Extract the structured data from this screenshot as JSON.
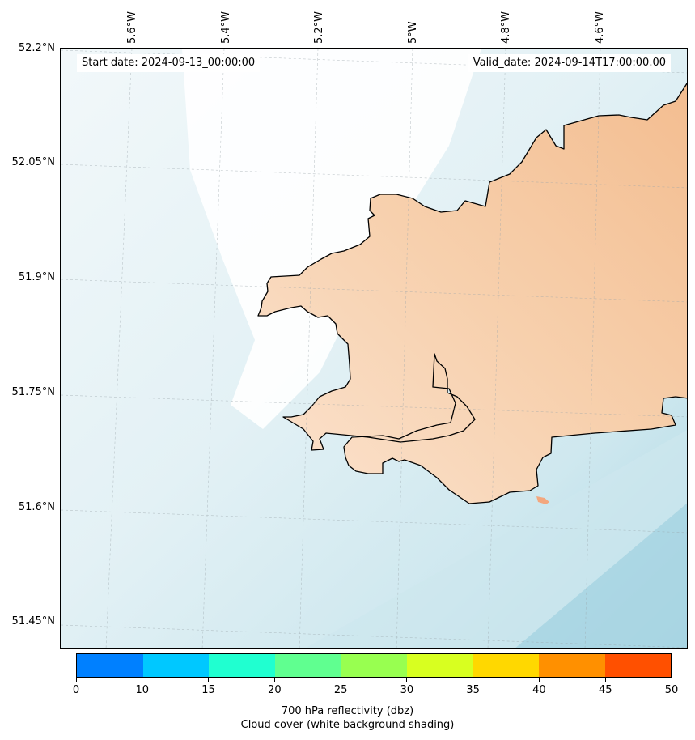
{
  "start_date": "Start date: 2024-09-13_00:00:00",
  "valid_date": "Valid_date: 2024-09-14T17:00:00.00",
  "lon_labels": [
    "5.6°W",
    "5.4°W",
    "5.2°W",
    "5°W",
    "4.8°W",
    "4.6°W"
  ],
  "lat_labels": [
    "52.2°N",
    "52.05°N",
    "51.9°N",
    "51.75°N",
    "51.6°N",
    "51.45°N"
  ],
  "colorbar": {
    "colors": [
      "#0080ff",
      "#00c8ff",
      "#20ffd0",
      "#60ff90",
      "#98ff50",
      "#d8ff20",
      "#ffd800",
      "#ff9000",
      "#ff5000"
    ],
    "ticks": [
      "0",
      "10",
      "15",
      "20",
      "25",
      "30",
      "35",
      "40",
      "45",
      "50"
    ],
    "label_line1": "700 hPa reflectivity (dbz)",
    "label_line2": "Cloud cover (white background shading)"
  },
  "colors": {
    "sea_light": "#eef6f8",
    "sea_mid": "#d6ebf1",
    "sea_dark": "#a8d5e2",
    "land_cloud": "#f7d5b8",
    "land_cloud_dark": "#f3c39a",
    "clear_cloud": "#ffffff",
    "coast": "#000000"
  }
}
